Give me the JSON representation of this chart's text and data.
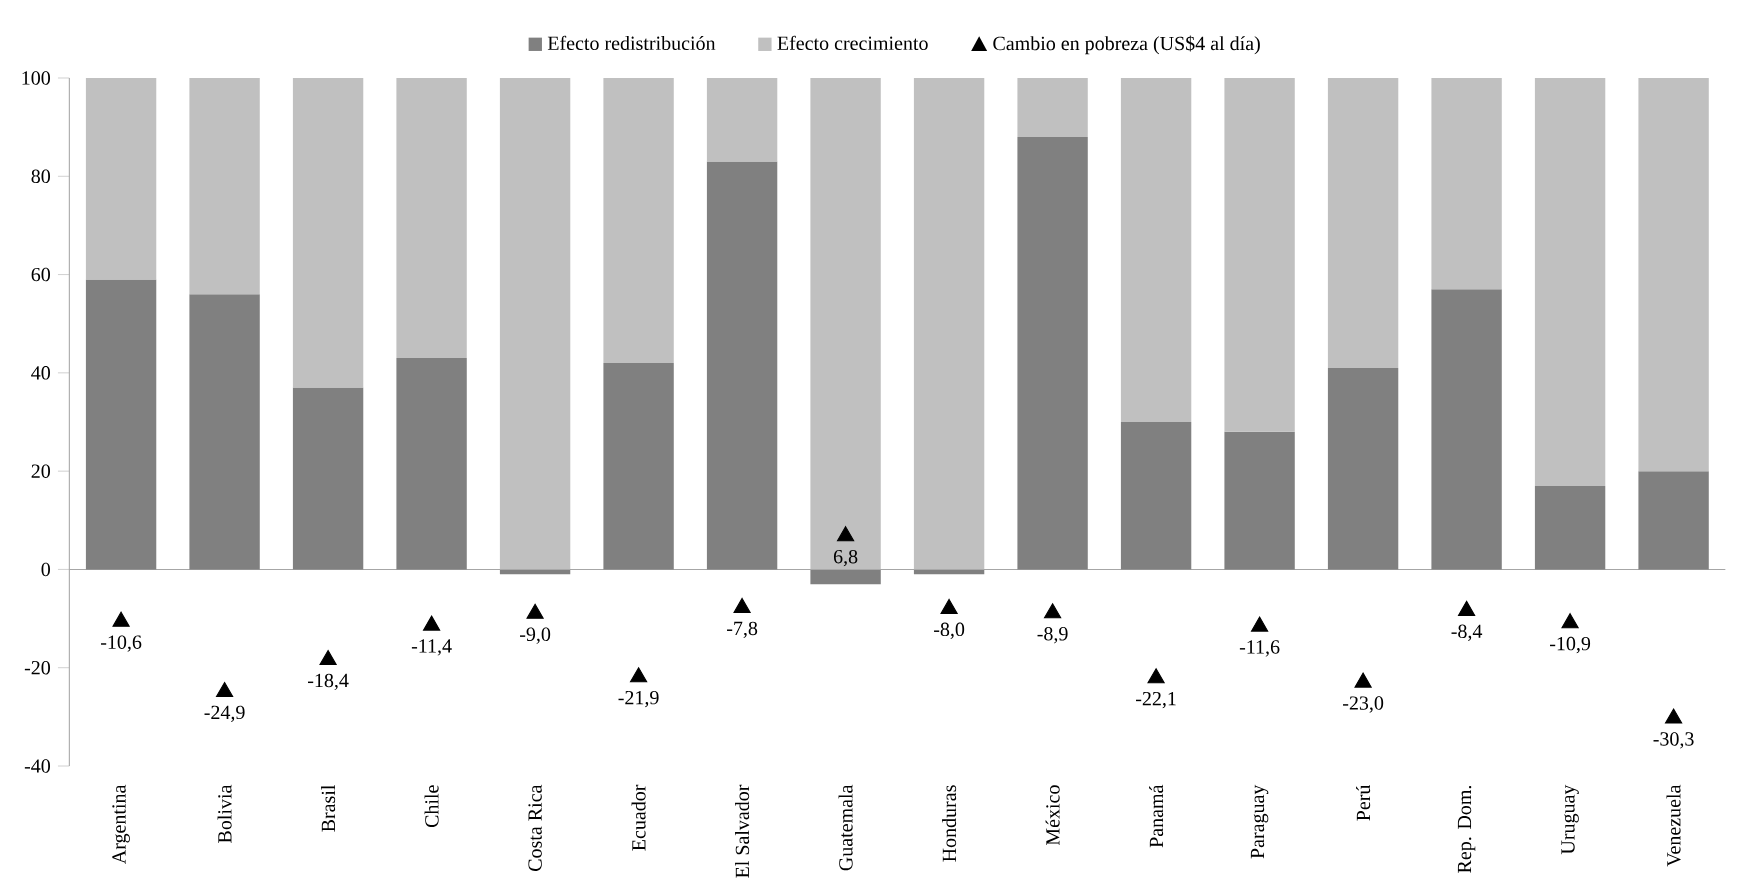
{
  "chart_data": {
    "type": "bar",
    "stacked": true,
    "categories": [
      "Argentina",
      "Bolivia",
      "Brasil",
      "Chile",
      "Costa Rica",
      "Ecuador",
      "El Salvador",
      "Guatemala",
      "Honduras",
      "México",
      "Panamá",
      "Paraguay",
      "Perú",
      "Rep. Dom.",
      "Uruguay",
      "Venezuela"
    ],
    "series": [
      {
        "name": "Efecto redistribución",
        "color": "#808080",
        "values": [
          59,
          56,
          37,
          43,
          -1,
          42,
          83,
          -3,
          -1,
          88,
          30,
          28,
          41,
          57,
          17,
          20
        ]
      },
      {
        "name": "Efecto crecimiento",
        "color": "#c0c0c0",
        "values": [
          41,
          44,
          63,
          57,
          100,
          58,
          17,
          100,
          100,
          12,
          70,
          72,
          59,
          43,
          83,
          80
        ]
      },
      {
        "name": "Cambio en pobreza (US$4 al día)",
        "type": "scatter",
        "marker": "triangle",
        "color": "#000000",
        "values": [
          -10.6,
          -24.9,
          -18.4,
          -11.4,
          -9.0,
          -21.9,
          -7.8,
          6.8,
          -8.0,
          -8.9,
          -22.1,
          -11.6,
          -23.0,
          -8.4,
          -10.9,
          -30.3
        ],
        "value_labels": [
          "-10,6",
          "-24,9",
          "-18,4",
          "-11,4",
          "-9,0",
          "-21,9",
          "-7,8",
          "6,8",
          "-8,0",
          "-8,9",
          "-22,1",
          "-11,6",
          "-23,0",
          "-8,4",
          "-10,9",
          "-30,3"
        ]
      }
    ],
    "ylim": [
      -40,
      100
    ],
    "yticks": [
      -40,
      -20,
      0,
      20,
      40,
      60,
      80,
      100
    ],
    "legend": "top"
  }
}
